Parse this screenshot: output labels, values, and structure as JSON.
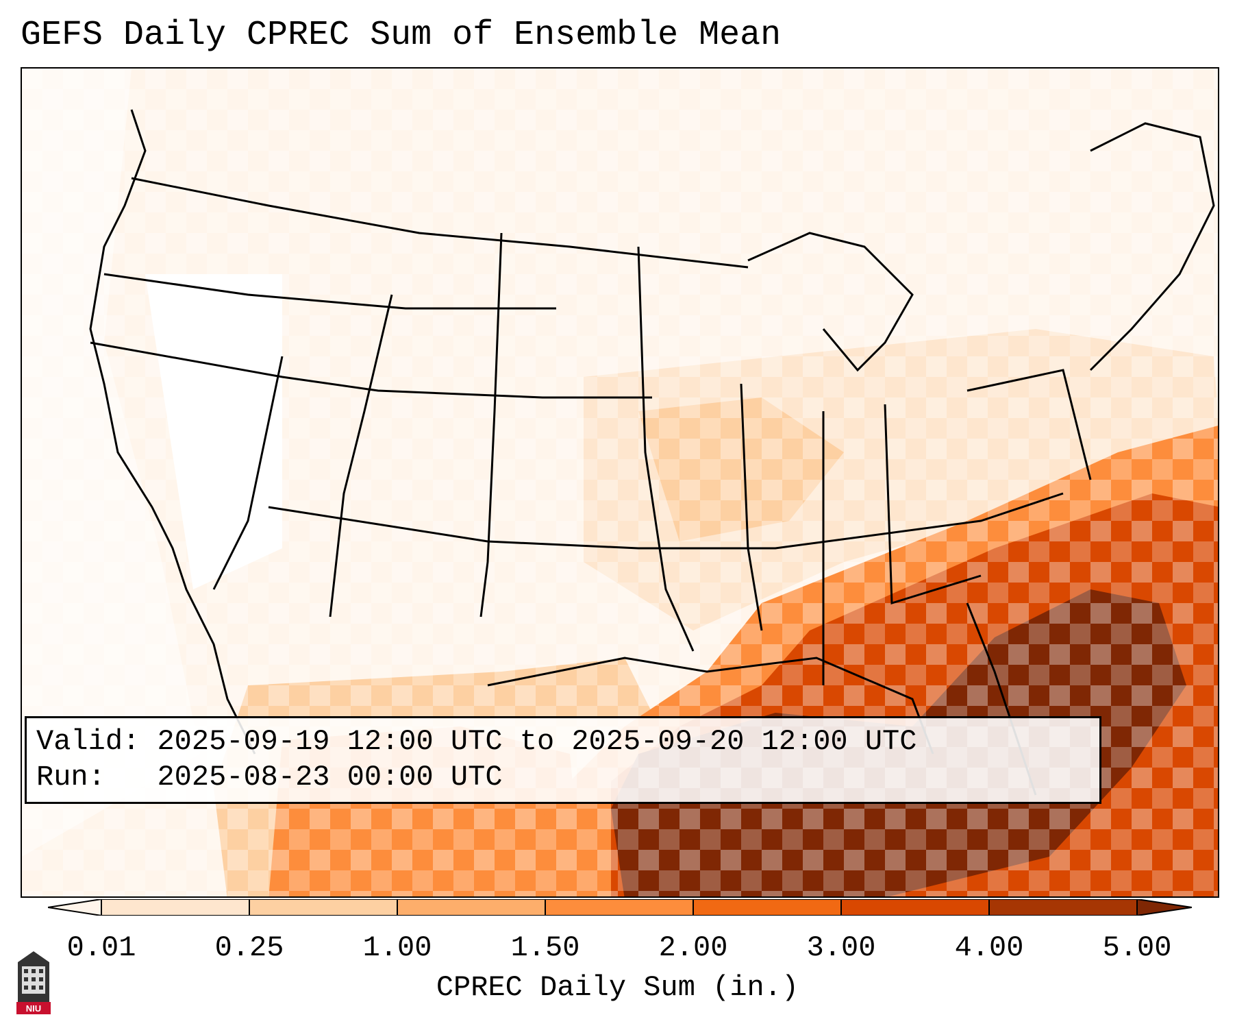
{
  "title": "GEFS Daily CPREC Sum of Ensemble Mean",
  "info": {
    "valid_label": "Valid:",
    "valid_value": "2025-09-19 12:00 UTC to 2025-09-20 12:00 UTC",
    "run_label": "Run:",
    "run_value": "2025-08-23 00:00 UTC"
  },
  "colorbar": {
    "label": "CPREC Daily Sum (in.)",
    "ticks": [
      "0.01",
      "0.25",
      "1.00",
      "1.50",
      "2.00",
      "3.00",
      "4.00",
      "5.00"
    ],
    "colors": [
      "#fff5eb",
      "#fee6ce",
      "#fdd0a2",
      "#fdae6b",
      "#fd8d3c",
      "#f16913",
      "#d94801",
      "#a63603",
      "#7f2704"
    ]
  },
  "logo": {
    "text": "NIU",
    "icon": "niu-tower-logo"
  }
}
